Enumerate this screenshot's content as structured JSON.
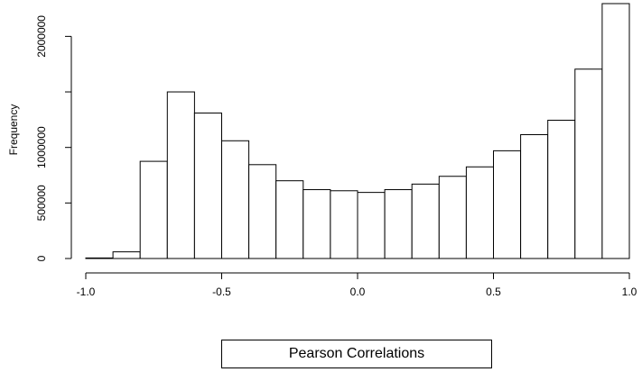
{
  "chart_data": {
    "type": "bar",
    "title": "",
    "xlabel": "Pearson Correlations",
    "ylabel": "Frequency",
    "bin_edges": [
      -1.0,
      -0.9,
      -0.8,
      -0.7,
      -0.6,
      -0.5,
      -0.4,
      -0.3,
      -0.2,
      -0.1,
      0.0,
      0.1,
      0.2,
      0.3,
      0.4,
      0.5,
      0.6,
      0.7,
      0.8,
      0.9,
      1.0
    ],
    "values": [
      5000,
      60000,
      875000,
      1500000,
      1310000,
      1060000,
      845000,
      700000,
      620000,
      610000,
      595000,
      620000,
      670000,
      740000,
      825000,
      970000,
      1115000,
      1245000,
      1705000,
      2295000
    ],
    "xlim": [
      -1.0,
      1.0
    ],
    "ylim": [
      0,
      2295000
    ],
    "xticks": [
      -1.0,
      -0.5,
      0.0,
      0.5,
      1.0
    ],
    "xtick_labels": [
      "-1.0",
      "-0.5",
      "0.0",
      "0.5",
      "1.0"
    ],
    "yticks": [
      0,
      500000,
      1000000,
      1500000,
      2000000
    ],
    "ytick_labels": [
      "0",
      "500000",
      "1000000",
      "",
      "2000000"
    ],
    "grid": false,
    "legend": "none",
    "colors": {
      "bar_fill": "#ffffff",
      "bar_stroke": "#000000"
    }
  }
}
